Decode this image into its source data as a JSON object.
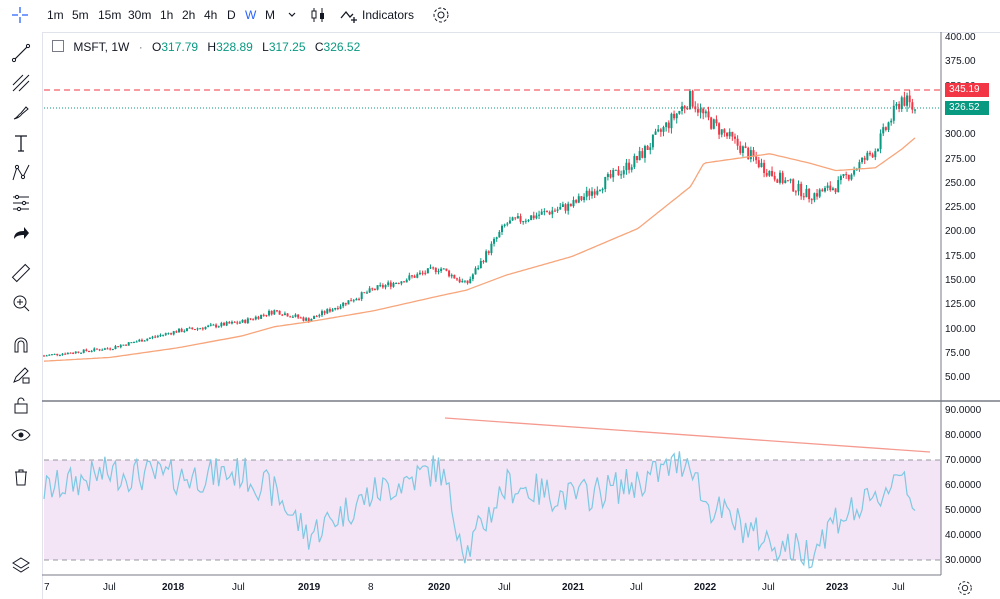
{
  "toolbar": {
    "timeframes": [
      "1m",
      "5m",
      "15m",
      "30m",
      "1h",
      "2h",
      "4h",
      "D",
      "W",
      "M"
    ],
    "active_timeframe": "W",
    "indicators_label": "Indicators",
    "icons": [
      "crosshair-icon",
      "chevron-down-icon",
      "candles-icon",
      "indicators-icon",
      "settings-icon"
    ]
  },
  "legend": {
    "symbol": "MSFT, 1W",
    "dot_separator": "·",
    "open_label": "O",
    "open": "317.79",
    "high_label": "H",
    "high": "328.89",
    "low_label": "L",
    "low": "317.25",
    "close_label": "C",
    "close": "326.52"
  },
  "price_axis": [
    "400.00",
    "375.00",
    "350.00",
    "325.00",
    "300.00",
    "275.00",
    "250.00",
    "225.00",
    "200.00",
    "175.00",
    "150.00",
    "125.00",
    "100.00",
    "75.00",
    "50.00"
  ],
  "price_tags": {
    "resistance": "345.19",
    "last": "326.52"
  },
  "rsi_axis": [
    "90.0000",
    "80.0000",
    "70.0000",
    "60.0000",
    "50.0000",
    "40.0000",
    "30.0000"
  ],
  "time_axis": [
    {
      "label": "7",
      "bold": false
    },
    {
      "label": "Jul",
      "bold": false
    },
    {
      "label": "2018",
      "bold": true
    },
    {
      "label": "Jul",
      "bold": false
    },
    {
      "label": "2019",
      "bold": true
    },
    {
      "label": "8",
      "bold": false
    },
    {
      "label": "2020",
      "bold": true
    },
    {
      "label": "Jul",
      "bold": false
    },
    {
      "label": "2021",
      "bold": true
    },
    {
      "label": "Jul",
      "bold": false
    },
    {
      "label": "2022",
      "bold": true
    },
    {
      "label": "Jul",
      "bold": false
    },
    {
      "label": "2023",
      "bold": true
    },
    {
      "label": "Jul",
      "bold": false
    }
  ],
  "colors": {
    "up": "#089981",
    "down": "#f23645",
    "ma": "#f7a57b",
    "rsi": "#7ec8e3",
    "rsi_band": "#f3e5f5",
    "trend": "#f59a8f",
    "resistance": "#f23645",
    "last": "#089981"
  },
  "chart_data": {
    "type": "candlestick",
    "x": [
      2017.0,
      2017.5,
      2018.0,
      2018.5,
      2018.75,
      2019.0,
      2019.5,
      2020.0,
      2020.2,
      2020.5,
      2021.0,
      2021.5,
      2021.9,
      2022.0,
      2022.5,
      2022.8,
      2023.0,
      2023.3,
      2023.5,
      2023.6
    ],
    "close": [
      64,
      72,
      90,
      100,
      112,
      102,
      135,
      158,
      140,
      205,
      225,
      275,
      340,
      320,
      260,
      235,
      245,
      285,
      340,
      326.52
    ],
    "ma": [
      58,
      62,
      72,
      85,
      95,
      100,
      112,
      128,
      134,
      150,
      170,
      200,
      245,
      270,
      280,
      270,
      262,
      265,
      285,
      297
    ],
    "rsi": [
      63,
      70,
      68,
      70,
      62,
      45,
      62,
      72,
      38,
      65,
      60,
      66,
      76,
      58,
      42,
      38,
      52,
      58,
      72,
      57
    ],
    "ylim": [
      40,
      405
    ],
    "rsi_ylim": [
      25,
      95
    ],
    "overbought": 70,
    "oversold": 30
  }
}
